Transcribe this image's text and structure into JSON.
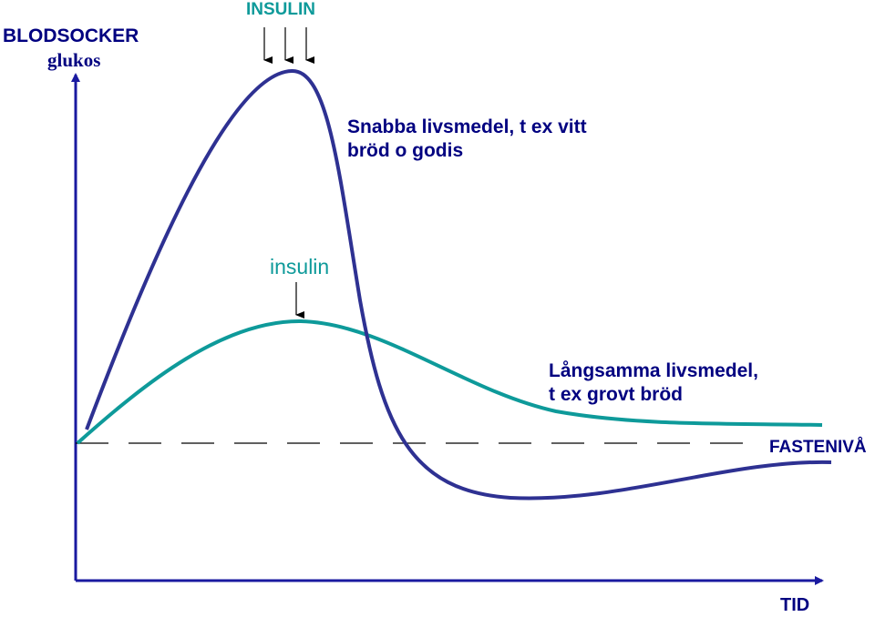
{
  "y_axis": {
    "title": "BLODSOCKER",
    "subtitle": "glukos"
  },
  "x_axis": {
    "title": "TID"
  },
  "baseline": {
    "label": "FASTENIVÅ"
  },
  "fast_food": {
    "insulin_label": "INSULIN",
    "description_line1": "Snabba livsmedel, t ex vitt",
    "description_line2": "bröd o godis",
    "color": "#2E3192"
  },
  "slow_food": {
    "insulin_label": "insulin",
    "description_line1": "Långsamma livsmedel,",
    "description_line2": "t ex grovt bröd",
    "color": "#0E9A9A"
  },
  "colors": {
    "axis": "#000080",
    "label_navy": "#000080",
    "label_teal": "#0E9A9A"
  }
}
